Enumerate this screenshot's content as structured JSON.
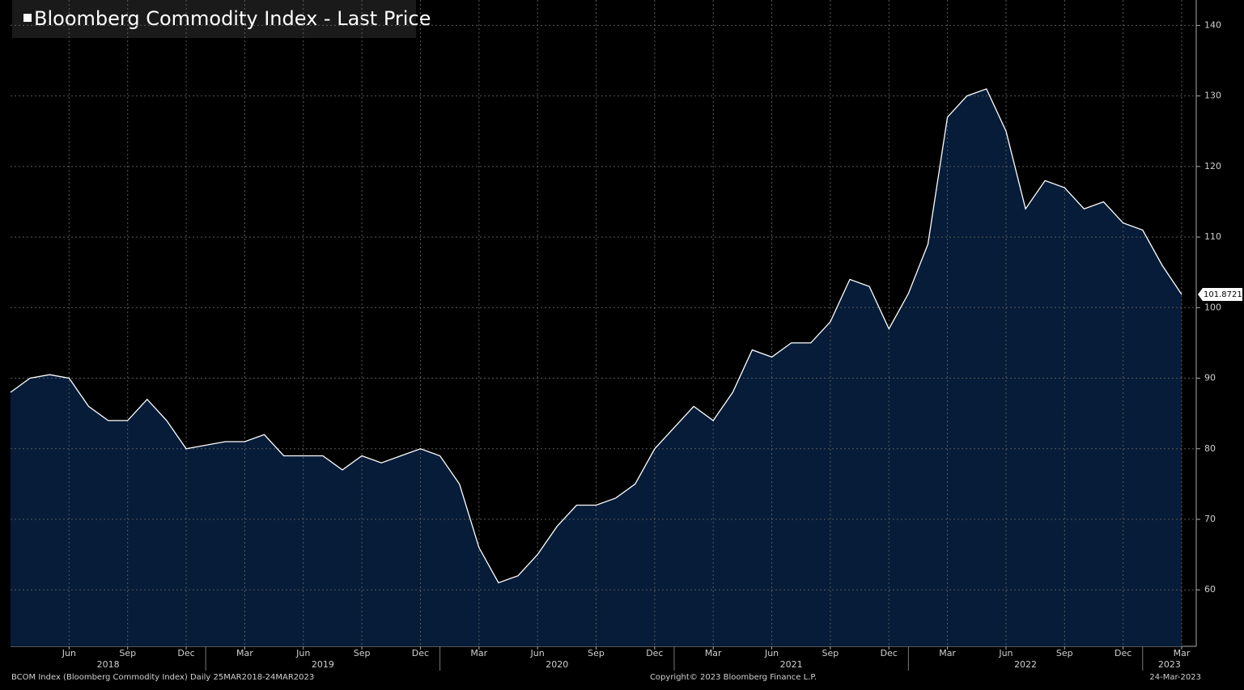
{
  "chart_data": {
    "type": "area",
    "title": "Bloomberg Commodity Index - Last Price",
    "color": "#ffffff",
    "fill": "#061c38",
    "x": [
      "2018-03",
      "2018-04",
      "2018-05",
      "2018-06",
      "2018-07",
      "2018-08",
      "2018-09",
      "2018-10",
      "2018-11",
      "2018-12",
      "2019-01",
      "2019-02",
      "2019-03",
      "2019-04",
      "2019-05",
      "2019-06",
      "2019-07",
      "2019-08",
      "2019-09",
      "2019-10",
      "2019-11",
      "2019-12",
      "2020-01",
      "2020-02",
      "2020-03",
      "2020-04",
      "2020-05",
      "2020-06",
      "2020-07",
      "2020-08",
      "2020-09",
      "2020-10",
      "2020-11",
      "2020-12",
      "2021-01",
      "2021-02",
      "2021-03",
      "2021-04",
      "2021-05",
      "2021-06",
      "2021-07",
      "2021-08",
      "2021-09",
      "2021-10",
      "2021-11",
      "2021-12",
      "2022-01",
      "2022-02",
      "2022-03",
      "2022-04",
      "2022-05",
      "2022-06",
      "2022-07",
      "2022-08",
      "2022-09",
      "2022-10",
      "2022-11",
      "2022-12",
      "2023-01",
      "2023-02",
      "2023-03"
    ],
    "values": [
      88,
      90,
      90.5,
      90,
      86,
      84,
      84,
      87,
      84,
      80,
      80.5,
      81,
      81,
      82,
      79,
      79,
      79,
      77,
      79,
      78,
      79,
      80,
      79,
      75,
      66,
      61,
      62,
      65,
      69,
      72,
      72,
      73,
      75,
      80,
      83,
      86,
      84,
      88,
      94,
      93,
      95,
      95,
      98,
      104,
      103,
      97,
      102,
      109,
      127,
      130,
      131,
      125,
      114,
      118,
      117,
      114,
      115,
      112,
      111,
      106,
      101.8721
    ],
    "ylim": [
      52,
      143.6
    ],
    "yticks": [
      60,
      70,
      80,
      90,
      100,
      110,
      120,
      130,
      140
    ],
    "xlim": [
      "2018-03",
      "2023-03"
    ],
    "xticks": [
      {
        "value": "2018-06",
        "label": "Jun"
      },
      {
        "value": "2018-09",
        "label": "Sep"
      },
      {
        "value": "2018-12",
        "label": "Dec"
      },
      {
        "value": "2019-03",
        "label": "Mar"
      },
      {
        "value": "2019-06",
        "label": "Jun"
      },
      {
        "value": "2019-09",
        "label": "Sep"
      },
      {
        "value": "2019-12",
        "label": "Dec"
      },
      {
        "value": "2020-03",
        "label": "Mar"
      },
      {
        "value": "2020-06",
        "label": "Jun"
      },
      {
        "value": "2020-09",
        "label": "Sep"
      },
      {
        "value": "2020-12",
        "label": "Dec"
      },
      {
        "value": "2021-03",
        "label": "Mar"
      },
      {
        "value": "2021-06",
        "label": "Jun"
      },
      {
        "value": "2021-09",
        "label": "Sep"
      },
      {
        "value": "2021-12",
        "label": "Dec"
      },
      {
        "value": "2022-03",
        "label": "Mar"
      },
      {
        "value": "2022-06",
        "label": "Jun"
      },
      {
        "value": "2022-09",
        "label": "Sep"
      },
      {
        "value": "2022-12",
        "label": "Dec"
      },
      {
        "value": "2023-03",
        "label": "Mar"
      }
    ],
    "years": [
      "2018",
      "2019",
      "2020",
      "2021",
      "2022",
      "2023"
    ],
    "grid": true,
    "footer_left": "BCOM Index (Bloomberg Commodity Index)  Daily 25MAR2018-24MAR2023",
    "footer_center": "Copyright© 2023 Bloomberg Finance L.P.",
    "footer_right": "24-Mar-2023"
  }
}
